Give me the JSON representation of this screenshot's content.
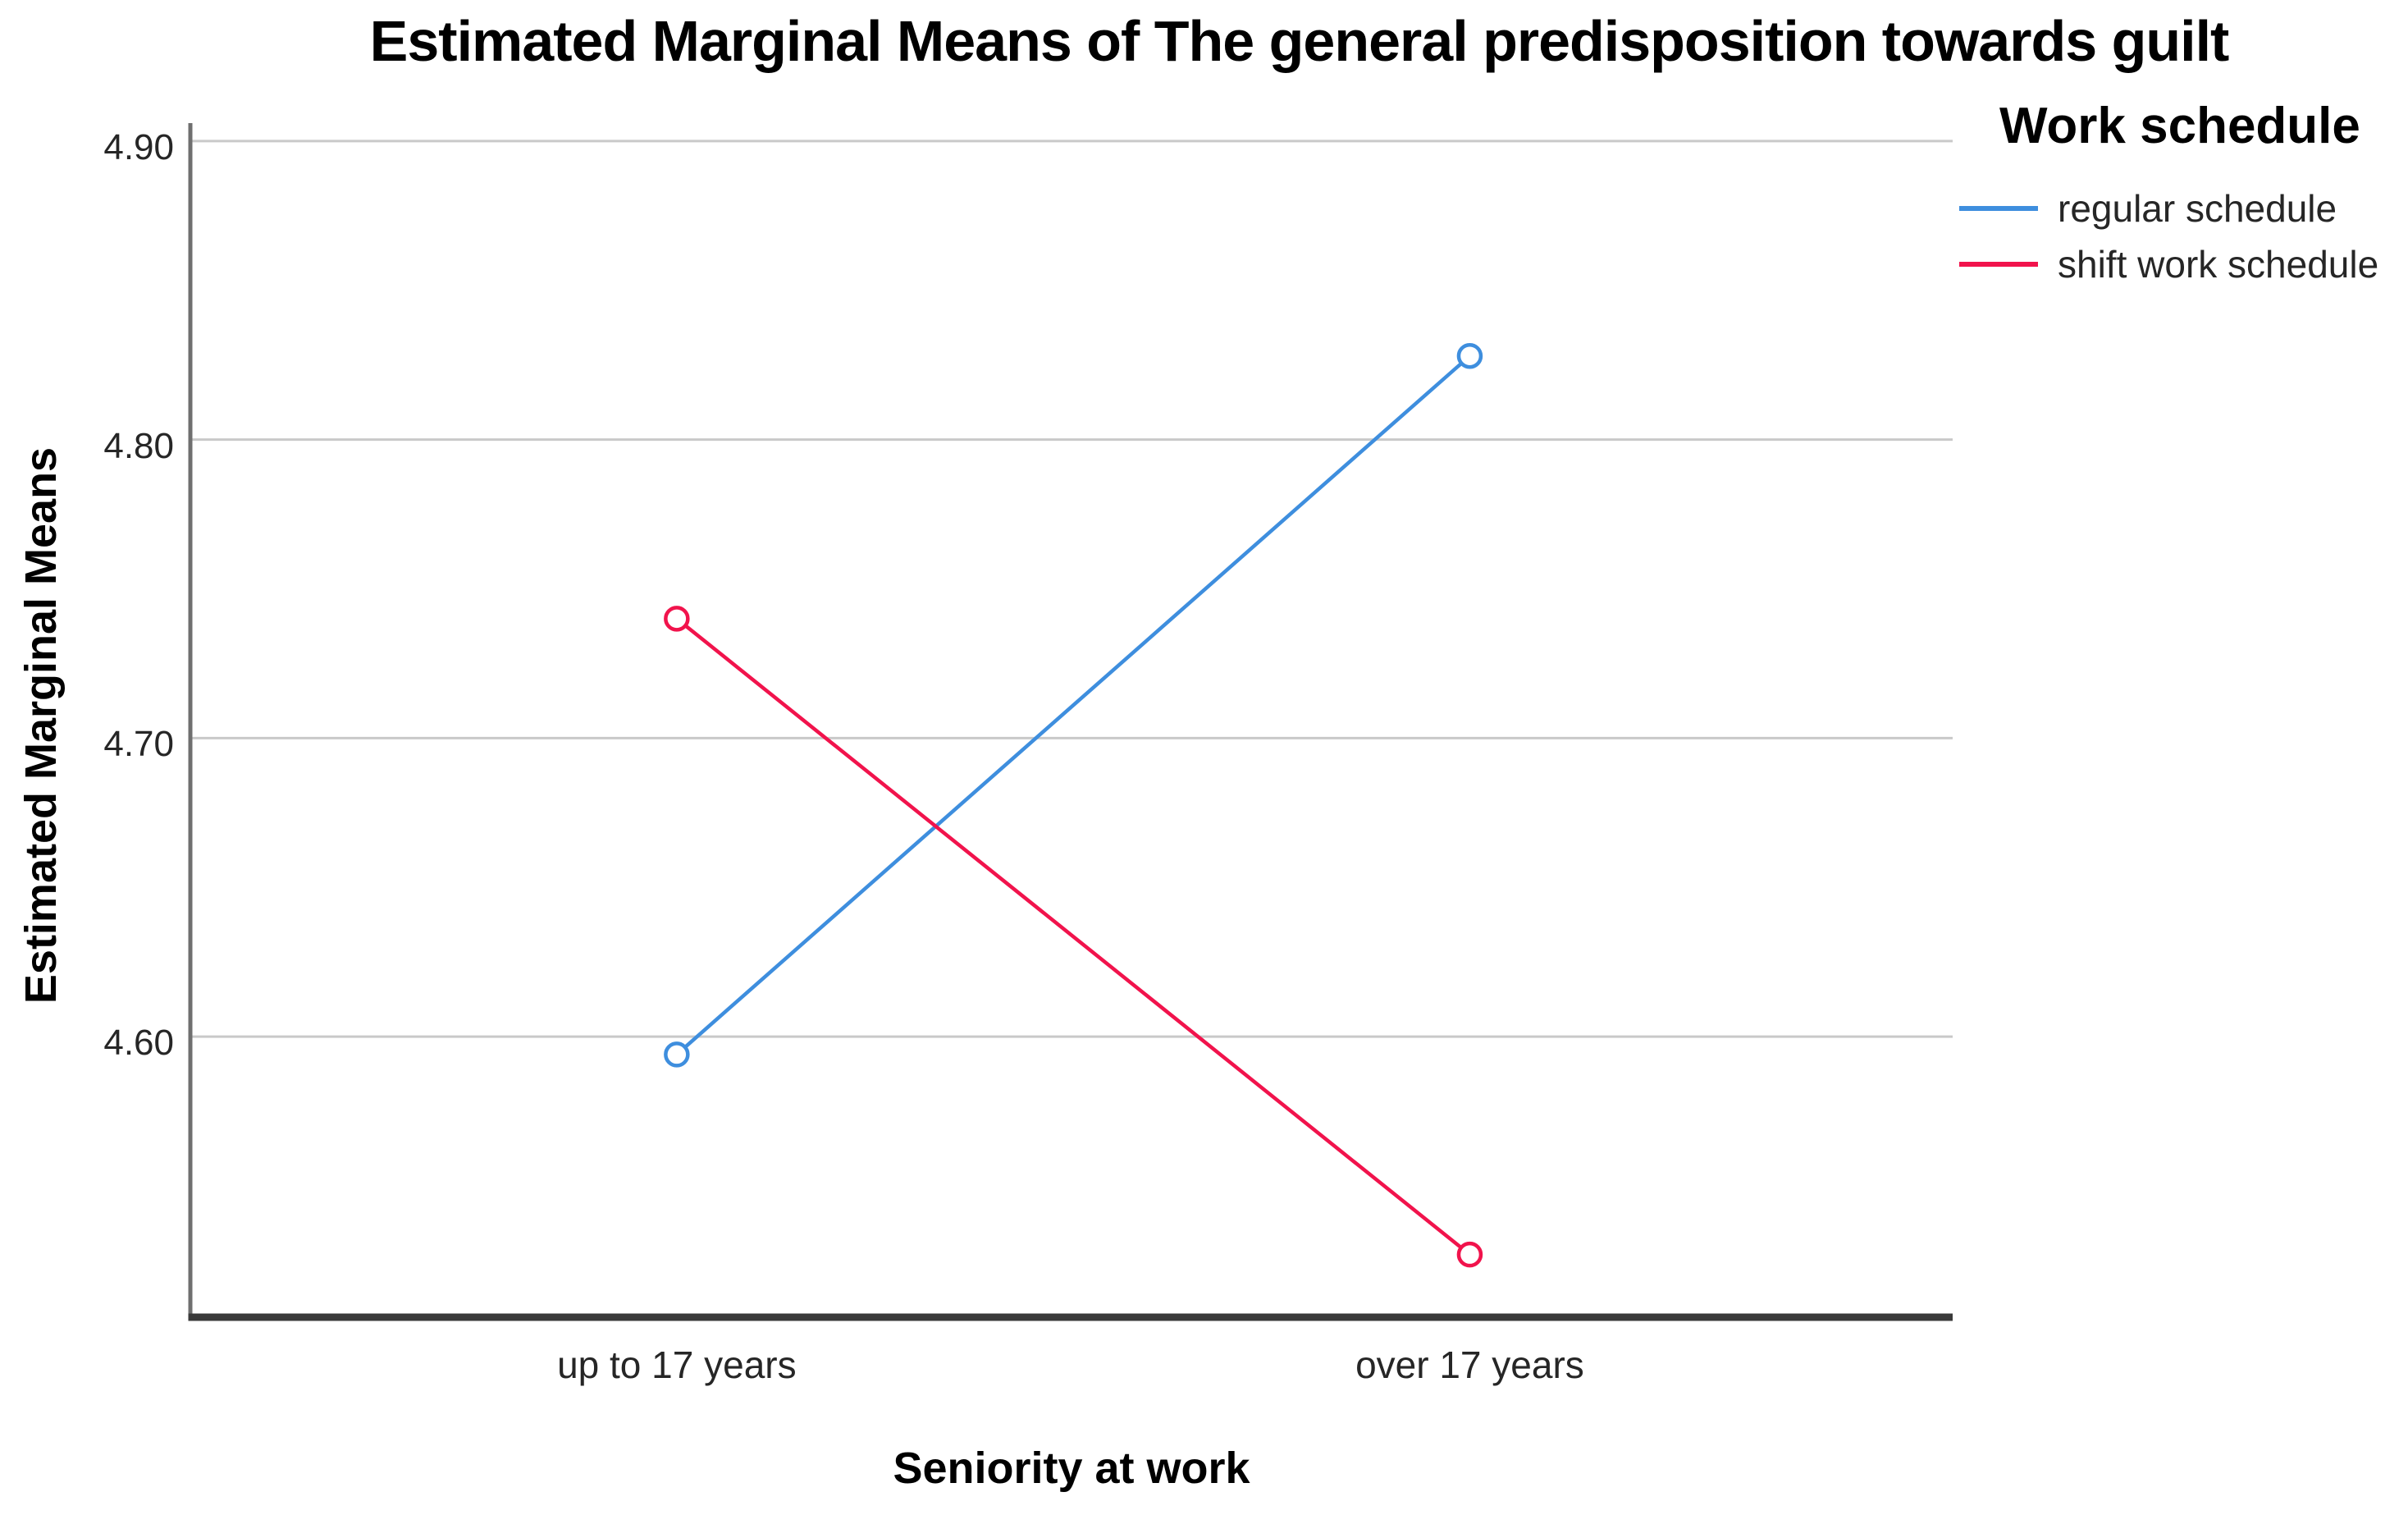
{
  "chart_data": {
    "type": "line",
    "title": "Estimated Marginal Means of The general predisposition towards guilt",
    "xlabel": "Seniority at work",
    "ylabel": "Estimated Marginal Means",
    "legend_title": "Work schedule",
    "categories": [
      "up to 17 years",
      "over 17 years"
    ],
    "series": [
      {
        "name": "regular schedule",
        "color": "#3E8EDE",
        "values": [
          4.594,
          4.828
        ]
      },
      {
        "name": "shift work schedule",
        "color": "#F1134C",
        "values": [
          4.74,
          4.527
        ]
      }
    ],
    "y_ticks": [
      4.6,
      4.7,
      4.8,
      4.9
    ],
    "ylim": [
      4.506,
      4.906
    ],
    "grid": true,
    "legend_position": "top-right",
    "marker": "open-circle",
    "colors": {
      "gridline": "#C9C9C9",
      "y_axis_line": "#6F6F6F",
      "x_axis_line": "#3A3A3A",
      "tick_text": "#262626"
    }
  }
}
